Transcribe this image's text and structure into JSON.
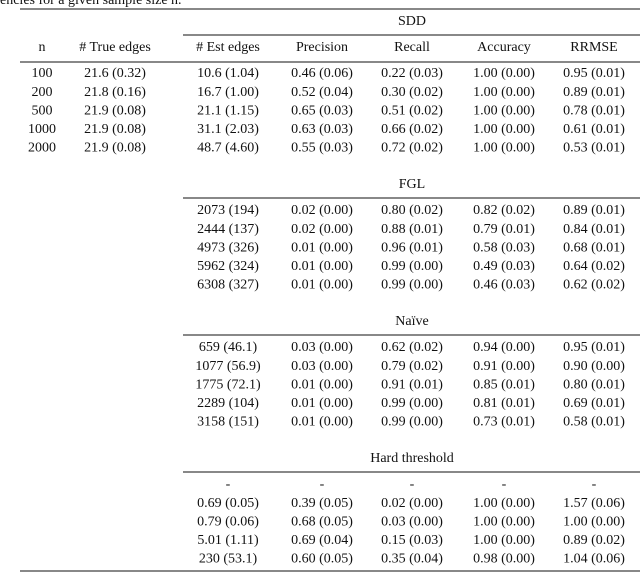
{
  "caption": "encies for a given sample size n.",
  "columns": [
    "n",
    "# True edges",
    "# Est edges",
    "Precision",
    "Recall",
    "Accuracy",
    "RRMSE"
  ],
  "groups": [
    {
      "name": "SDD",
      "rows": [
        [
          "100",
          "21.6 (0.32)",
          "10.6 (1.04)",
          "0.46 (0.06)",
          "0.22 (0.03)",
          "1.00 (0.00)",
          "0.95 (0.01)"
        ],
        [
          "200",
          "21.8 (0.16)",
          "16.7 (1.00)",
          "0.52 (0.04)",
          "0.30 (0.02)",
          "1.00 (0.00)",
          "0.89 (0.01)"
        ],
        [
          "500",
          "21.9 (0.08)",
          "21.1 (1.15)",
          "0.65 (0.03)",
          "0.51 (0.02)",
          "1.00 (0.00)",
          "0.78 (0.01)"
        ],
        [
          "1000",
          "21.9 (0.08)",
          "31.1 (2.03)",
          "0.63 (0.03)",
          "0.66 (0.02)",
          "1.00 (0.00)",
          "0.61 (0.01)"
        ],
        [
          "2000",
          "21.9 (0.08)",
          "48.7 (4.60)",
          "0.55 (0.03)",
          "0.72 (0.02)",
          "1.00 (0.00)",
          "0.53 (0.01)"
        ]
      ]
    },
    {
      "name": "FGL",
      "rows": [
        [
          "2073 (194)",
          "0.02 (0.00)",
          "0.80 (0.02)",
          "0.82 (0.02)",
          "0.89 (0.01)"
        ],
        [
          "2444 (137)",
          "0.02 (0.00)",
          "0.88 (0.01)",
          "0.79 (0.01)",
          "0.84 (0.01)"
        ],
        [
          "4973 (326)",
          "0.01 (0.00)",
          "0.96 (0.01)",
          "0.58 (0.03)",
          "0.68 (0.01)"
        ],
        [
          "5962 (324)",
          "0.01 (0.00)",
          "0.99 (0.00)",
          "0.49 (0.03)",
          "0.64 (0.02)"
        ],
        [
          "6308 (327)",
          "0.01 (0.00)",
          "0.99 (0.00)",
          "0.46 (0.03)",
          "0.62 (0.02)"
        ]
      ]
    },
    {
      "name": "Naïve",
      "rows": [
        [
          "659 (46.1)",
          "0.03 (0.00)",
          "0.62 (0.02)",
          "0.94 (0.00)",
          "0.95 (0.01)"
        ],
        [
          "1077 (56.9)",
          "0.03 (0.00)",
          "0.79 (0.02)",
          "0.91 (0.00)",
          "0.90 (0.00)"
        ],
        [
          "1775 (72.1)",
          "0.01 (0.00)",
          "0.91 (0.01)",
          "0.85 (0.01)",
          "0.80 (0.01)"
        ],
        [
          "2289 (104)",
          "0.01 (0.00)",
          "0.99 (0.00)",
          "0.81 (0.01)",
          "0.69 (0.01)"
        ],
        [
          "3158 (151)",
          "0.01 (0.00)",
          "0.99 (0.00)",
          "0.73 (0.01)",
          "0.58 (0.01)"
        ]
      ]
    },
    {
      "name": "Hard threshold",
      "rows": [
        [
          "-",
          "-",
          "-",
          "-",
          "-"
        ],
        [
          "0.69 (0.05)",
          "0.39 (0.05)",
          "0.02 (0.00)",
          "1.00 (0.00)",
          "1.57 (0.06)"
        ],
        [
          "0.79 (0.06)",
          "0.68 (0.05)",
          "0.03 (0.00)",
          "1.00 (0.00)",
          "1.00 (0.00)"
        ],
        [
          "5.01 (1.11)",
          "0.69 (0.04)",
          "0.15 (0.03)",
          "1.00 (0.00)",
          "0.89 (0.02)"
        ],
        [
          "230 (53.1)",
          "0.60 (0.05)",
          "0.35 (0.04)",
          "0.98 (0.00)",
          "1.04 (0.06)"
        ]
      ]
    }
  ]
}
